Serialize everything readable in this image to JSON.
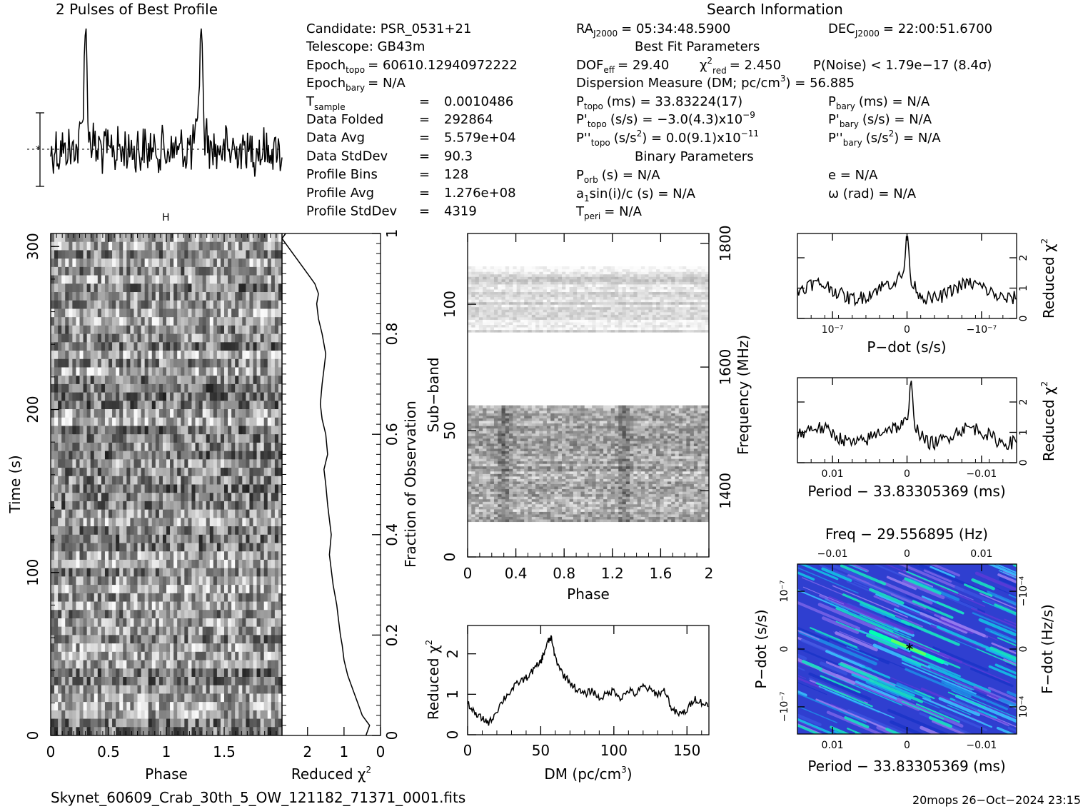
{
  "header": {
    "profile_title": "2 Pulses of Best Profile",
    "search_title": "Search Information",
    "best_fit_title": "Best Fit Parameters",
    "binary_title": "Binary Parameters"
  },
  "info": {
    "candidate": "Candidate:  PSR_0531+21",
    "telescope": "Telescope:  GB43m",
    "epoch_topo": "= 60610.12940972222",
    "epoch_bary": "= N/A",
    "tsample_label": "T",
    "tsample_sub": "sample",
    "tsample_eq": "=",
    "tsample_val": "0.0010486",
    "rows": [
      {
        "label": "Data Folded",
        "eq": "=",
        "val": "292864"
      },
      {
        "label": "Data Avg",
        "eq": "=",
        "val": "5.579e+04"
      },
      {
        "label": "Data StdDev",
        "eq": "=",
        "val": "90.3"
      },
      {
        "label": "Profile Bins",
        "eq": "=",
        "val": "128"
      },
      {
        "label": "Profile Avg",
        "eq": "=",
        "val": "1.276e+08"
      },
      {
        "label": "Profile StdDev",
        "eq": "=",
        "val": "4319"
      }
    ]
  },
  "search": {
    "ra_val": "= 05:34:48.5900",
    "dec_val": "= 22:00:51.6700",
    "dof_val": "= 29.40",
    "chi_val": "= 2.450",
    "pnoise": "P(Noise) < 1.79e−17   (8.4σ)",
    "dm_line": "Dispersion Measure (DM; pc/cm",
    "dm_val": ") = 56.885",
    "ptopo": "(ms) =  33.83224(17)",
    "pbary": "(ms) = N/A",
    "pdtopo": "(s/s) = −3.0(4.3)x10",
    "pdtopo_exp": "−9",
    "pdbary": "(s/s) = N/A",
    "pddtopo": ") = 0.0(9.1)x10",
    "pddtopo_exp": "−11",
    "pddbary": ") = N/A",
    "porb": "(s) = N/A",
    "e": "e = N/A",
    "a1": "sin(i)/c (s) = N/A",
    "omega": "ω (rad) = N/A",
    "tperi": "= N/A"
  },
  "footer": {
    "filename": "Skynet_60609_Crab_30th_5_OW_121182_71371_0001.fits",
    "stamp": "20mops 26−Oct−2024 23:15"
  },
  "colors": {
    "line": "#000000",
    "heatmap_low": "#3c24c8",
    "heatmap_high": "#00ffb4"
  },
  "chart_data": [
    {
      "type": "line",
      "name": "profile",
      "title": "2 Pulses of Best Profile",
      "x_range": [
        0,
        2
      ],
      "peak_phases": [
        0.3,
        1.3
      ],
      "points": 256
    },
    {
      "type": "heatmap",
      "name": "time-phase",
      "xlabel": "Phase",
      "ylabel": "Time (s)",
      "x_ticks": [
        "0",
        "0.5",
        "1",
        "1.5"
      ],
      "x_range": [
        0,
        2
      ],
      "y_ticks": [
        "0",
        "100",
        "200",
        "300"
      ],
      "y_range": [
        0,
        308
      ],
      "rows": 60,
      "cols": 64
    },
    {
      "type": "line",
      "name": "reduced-chi2-vs-fraction",
      "xlabel": "Reduced χ",
      "x_ticks": [
        "2",
        "1",
        "0"
      ],
      "x_range": [
        2.7,
        0
      ],
      "ylabel": "Fraction of Observation",
      "y_ticks": [
        "0",
        "0.2",
        "0.4",
        "0.6",
        "0.8",
        "1"
      ],
      "y_range": [
        0,
        1
      ],
      "x": [
        0.4,
        0.3,
        0.5,
        0.6,
        0.7,
        0.8,
        0.9,
        1.0,
        1.05,
        1.1,
        1.15,
        1.2,
        1.3,
        1.35,
        1.4,
        1.35,
        1.4,
        1.45,
        1.5,
        1.55,
        1.45,
        1.5,
        1.6,
        1.65,
        1.6,
        1.55,
        1.5,
        1.6,
        1.7,
        1.75,
        1.7,
        1.8,
        2.0,
        2.2,
        2.4,
        2.6,
        2.7,
        2.6
      ],
      "y": [
        0.0,
        0.02,
        0.04,
        0.06,
        0.08,
        0.1,
        0.12,
        0.15,
        0.18,
        0.2,
        0.23,
        0.26,
        0.3,
        0.33,
        0.36,
        0.4,
        0.43,
        0.46,
        0.5,
        0.53,
        0.56,
        0.6,
        0.63,
        0.66,
        0.7,
        0.73,
        0.76,
        0.8,
        0.83,
        0.86,
        0.88,
        0.9,
        0.92,
        0.94,
        0.96,
        0.98,
        0.99,
        1.0
      ]
    },
    {
      "type": "heatmap",
      "name": "subband-phase",
      "xlabel": "Phase",
      "ylabel": "Sub-band",
      "y2label": "Frequency (MHz)",
      "x_ticks": [
        "0",
        "0.4",
        "0.8",
        "1.2",
        "1.6",
        "2"
      ],
      "x_range": [
        0,
        2
      ],
      "y_ticks": [
        "0",
        "50",
        "100"
      ],
      "y_range": [
        0,
        128
      ],
      "y2_ticks": [
        "1400",
        "1600",
        "1800"
      ],
      "y2_range": [
        1293,
        1816
      ],
      "bands_present": [
        [
          14,
          60
        ],
        [
          89,
          115
        ]
      ],
      "pulse_phases": [
        0.3,
        1.3
      ]
    },
    {
      "type": "line",
      "name": "dm-curve",
      "xlabel": "DM (pc/cm",
      "ylabel": "Reduced χ",
      "x_ticks": [
        "0",
        "50",
        "100",
        "150"
      ],
      "x_range": [
        0,
        165
      ],
      "y_ticks": [
        "0",
        "1",
        "2"
      ],
      "y_range": [
        0,
        2.7
      ],
      "x": [
        0,
        5,
        10,
        15,
        20,
        25,
        30,
        35,
        40,
        45,
        50,
        52,
        55,
        57,
        60,
        65,
        70,
        75,
        80,
        85,
        90,
        95,
        100,
        105,
        110,
        115,
        120,
        125,
        130,
        135,
        140,
        145,
        150,
        155,
        160,
        165
      ],
      "y": [
        0.8,
        0.5,
        0.4,
        0.3,
        0.6,
        0.9,
        1.1,
        1.3,
        1.4,
        1.6,
        1.8,
        2.0,
        2.3,
        2.4,
        1.9,
        1.5,
        1.3,
        1.1,
        1.0,
        1.1,
        0.9,
        1.0,
        1.1,
        0.9,
        1.1,
        1.0,
        1.2,
        1.1,
        1.0,
        1.1,
        0.6,
        0.5,
        0.6,
        0.9,
        0.8,
        0.7
      ],
      "peak_dm": 56.885
    },
    {
      "type": "line",
      "name": "pdot-curve",
      "xlabel": "P−dot (s/s)",
      "ylabel": "Reduced χ",
      "x_ticks": [
        "10⁻⁷",
        "0",
        "−10⁻⁷"
      ],
      "y_ticks": [
        "0",
        "1",
        "2"
      ],
      "y_range": [
        0,
        2.8
      ],
      "x_range": [
        -1.45e-07,
        1.45e-07
      ],
      "peak_x": 0
    },
    {
      "type": "line",
      "name": "period-curve",
      "xlabel": "Period − 33.83305369 (ms)",
      "ylabel": "Reduced χ",
      "x_ticks": [
        "0.01",
        "0",
        "−0.01"
      ],
      "y_ticks": [
        "0",
        "1",
        "2"
      ],
      "y_range": [
        0,
        2.8
      ],
      "x_range": [
        0.0145,
        -0.0145
      ],
      "peak_x": -0.0008
    },
    {
      "type": "heatmap",
      "name": "period-pdot-plane",
      "title": "Freq − 29.556895 (Hz)",
      "xlabel": "Period − 33.83305369 (ms)",
      "ylabel": "P−dot (s/s)",
      "y2label": "F−dot (Hz/s)",
      "x_ticks": [
        "0.01",
        "0",
        "−0.01"
      ],
      "x2_ticks": [
        "−0.01",
        "0",
        "0.01"
      ],
      "y_ticks": [
        "10⁻⁷",
        "0",
        "−10⁻⁷"
      ],
      "y2_ticks": [
        "−10⁻⁴",
        "0",
        "10⁻⁴"
      ],
      "best_marker": [
        -0.0008,
        0
      ]
    }
  ]
}
